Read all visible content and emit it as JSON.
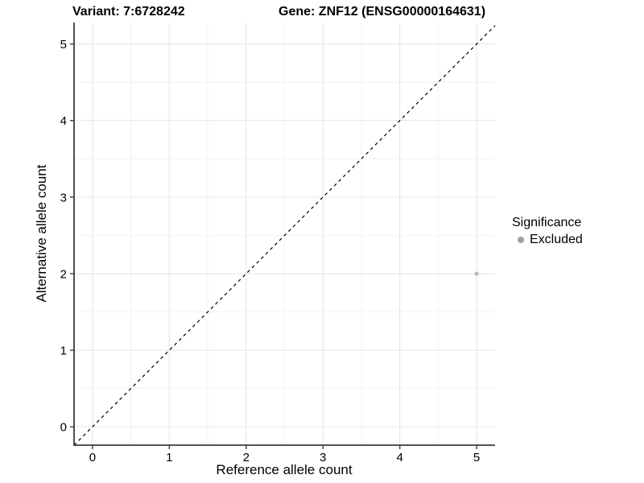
{
  "chart_data": {
    "type": "scatter",
    "title_left": "Variant: 7:6728242",
    "title_right": "Gene: ZNF12 (ENSG00000164631)",
    "xlabel": "Reference allele count",
    "ylabel": "Alternative allele count",
    "xlim": [
      -0.24,
      5.24
    ],
    "ylim": [
      -0.24,
      5.28
    ],
    "x_ticks": [
      0,
      1,
      2,
      3,
      4,
      5
    ],
    "y_ticks": [
      0,
      1,
      2,
      3,
      4,
      5
    ],
    "x_minor_ticks": [
      0.5,
      1.5,
      2.5,
      3.5,
      4.5
    ],
    "y_minor_ticks": [
      0.5,
      1.5,
      2.5,
      3.5,
      4.5
    ],
    "grid": true,
    "points": [
      {
        "x": 5,
        "y": 2,
        "series": "Excluded"
      }
    ],
    "reference_line": {
      "slope": 1,
      "intercept": 0,
      "style": "dashed"
    },
    "legend": {
      "title": "Significance",
      "position": "right",
      "items": [
        {
          "label": "Excluded",
          "color": "#a0a0a0"
        }
      ]
    },
    "colors": {
      "point": "#b6b6b6",
      "reference_line": "#000000",
      "grid_major": "#e6e6e6",
      "grid_minor": "#f2f2f2",
      "axis_line": "#3c3c3c",
      "tick_text": "#000000"
    }
  }
}
